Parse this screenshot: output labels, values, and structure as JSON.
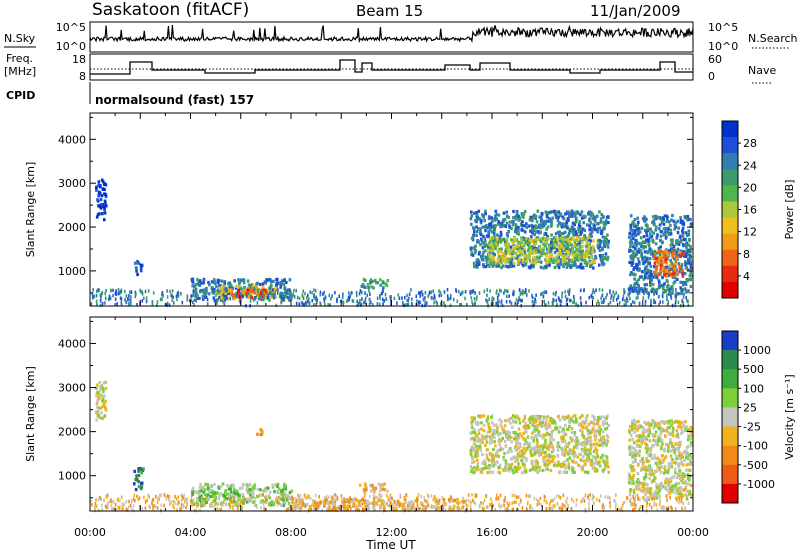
{
  "header": {
    "station": "Saskatoon (fitACF)",
    "beam": "Beam 15",
    "date": "11/Jan/2009"
  },
  "top_panels": {
    "nsky_label": "N.Sky",
    "nsky_ticks": [
      "10^5",
      "10^0"
    ],
    "nsearch_label": "N.Search",
    "nsearch_ticks": [
      "10^5",
      "10^0"
    ],
    "freq_label_1": "Freq.",
    "freq_label_2": "[MHz]",
    "freq_ticks": [
      "18",
      "8"
    ],
    "nave_label": "Nave",
    "nave_ticks": [
      "60",
      "0"
    ],
    "cpid_label": "CPID",
    "cpid_text": "normalsound (fast) 157"
  },
  "chart_data": [
    {
      "type": "heatmap",
      "name": "power",
      "ylabel": "Slant Range [km]",
      "yticks": [
        "1000",
        "2000",
        "3000",
        "4000"
      ],
      "ylim": [
        200,
        4600
      ],
      "xlim": [
        0,
        24
      ],
      "xticks": [
        "00:00",
        "04:00",
        "08:00",
        "12:00",
        "16:00",
        "20:00",
        "00:00"
      ],
      "colorbar_label": "Power [dB]",
      "colorbar_ticks": [
        "4",
        "8",
        "12",
        "16",
        "20",
        "24",
        "28"
      ],
      "colors": [
        "#0033cc",
        "#1f4fd6",
        "#2f7fae",
        "#3c9a6b",
        "#53b449",
        "#a7c93b",
        "#f0c020",
        "#f29a1a",
        "#ef6515",
        "#e82b10",
        "#e00000"
      ],
      "regions": [
        {
          "t0": 0.2,
          "t1": 0.6,
          "r0": 2200,
          "r1": 3200,
          "level": 0
        },
        {
          "t0": 1.7,
          "t1": 2.1,
          "r0": 950,
          "r1": 1250,
          "level": 1
        },
        {
          "t0": 4.0,
          "t1": 8.0,
          "r0": 350,
          "r1": 850,
          "level": 2
        },
        {
          "t0": 5.0,
          "t1": 7.4,
          "r0": 400,
          "r1": 700,
          "level": 6
        },
        {
          "t0": 5.6,
          "t1": 7.0,
          "r0": 420,
          "r1": 600,
          "level": 9
        },
        {
          "t0": 10.7,
          "t1": 11.8,
          "r0": 650,
          "r1": 850,
          "level": 3
        },
        {
          "t0": 15.1,
          "t1": 20.6,
          "r0": 1100,
          "r1": 2400,
          "level": 2
        },
        {
          "t0": 15.8,
          "t1": 20.0,
          "r0": 1200,
          "r1": 1800,
          "level": 5
        },
        {
          "t0": 21.4,
          "t1": 23.9,
          "r0": 500,
          "r1": 2300,
          "level": 2
        },
        {
          "t0": 22.4,
          "t1": 23.6,
          "r0": 900,
          "r1": 1500,
          "level": 8
        }
      ]
    },
    {
      "type": "heatmap",
      "name": "velocity",
      "ylabel": "Slant Range [km]",
      "yticks": [
        "1000",
        "2000",
        "3000",
        "4000"
      ],
      "ylim": [
        200,
        4600
      ],
      "xlim": [
        0,
        24
      ],
      "xticks": [
        "00:00",
        "04:00",
        "08:00",
        "12:00",
        "16:00",
        "20:00",
        "00:00"
      ],
      "xlabel": "Time UT",
      "colorbar_label": "Velocity [m s⁻¹]",
      "colorbar_ticks": [
        "1000",
        "500",
        "100",
        "25",
        "-25",
        "-100",
        "-500",
        "-1000"
      ],
      "colors": [
        "#1a3cc8",
        "#2d8a4f",
        "#3fae3f",
        "#7ed03a",
        "#c4c4c0",
        "#f0b31f",
        "#f28a1a",
        "#ef5a14",
        "#e00000"
      ],
      "regions": [
        {
          "t0": 0.2,
          "t1": 0.6,
          "r0": 2200,
          "r1": 3200,
          "level": 4
        },
        {
          "t0": 1.7,
          "t1": 2.1,
          "r0": 700,
          "r1": 1200,
          "level": 1
        },
        {
          "t0": 4.0,
          "t1": 8.0,
          "r0": 350,
          "r1": 850,
          "level": 3
        },
        {
          "t0": 6.6,
          "t1": 6.9,
          "r0": 1950,
          "r1": 2100,
          "level": 6
        },
        {
          "t0": 10.7,
          "t1": 11.8,
          "r0": 650,
          "r1": 850,
          "level": 5
        },
        {
          "t0": 8.0,
          "t1": 15.0,
          "r0": 250,
          "r1": 500,
          "level": 5
        },
        {
          "t0": 15.1,
          "t1": 20.6,
          "r0": 1100,
          "r1": 2400,
          "level": 4
        },
        {
          "t0": 21.4,
          "t1": 23.9,
          "r0": 500,
          "r1": 2300,
          "level": 4
        }
      ]
    }
  ]
}
